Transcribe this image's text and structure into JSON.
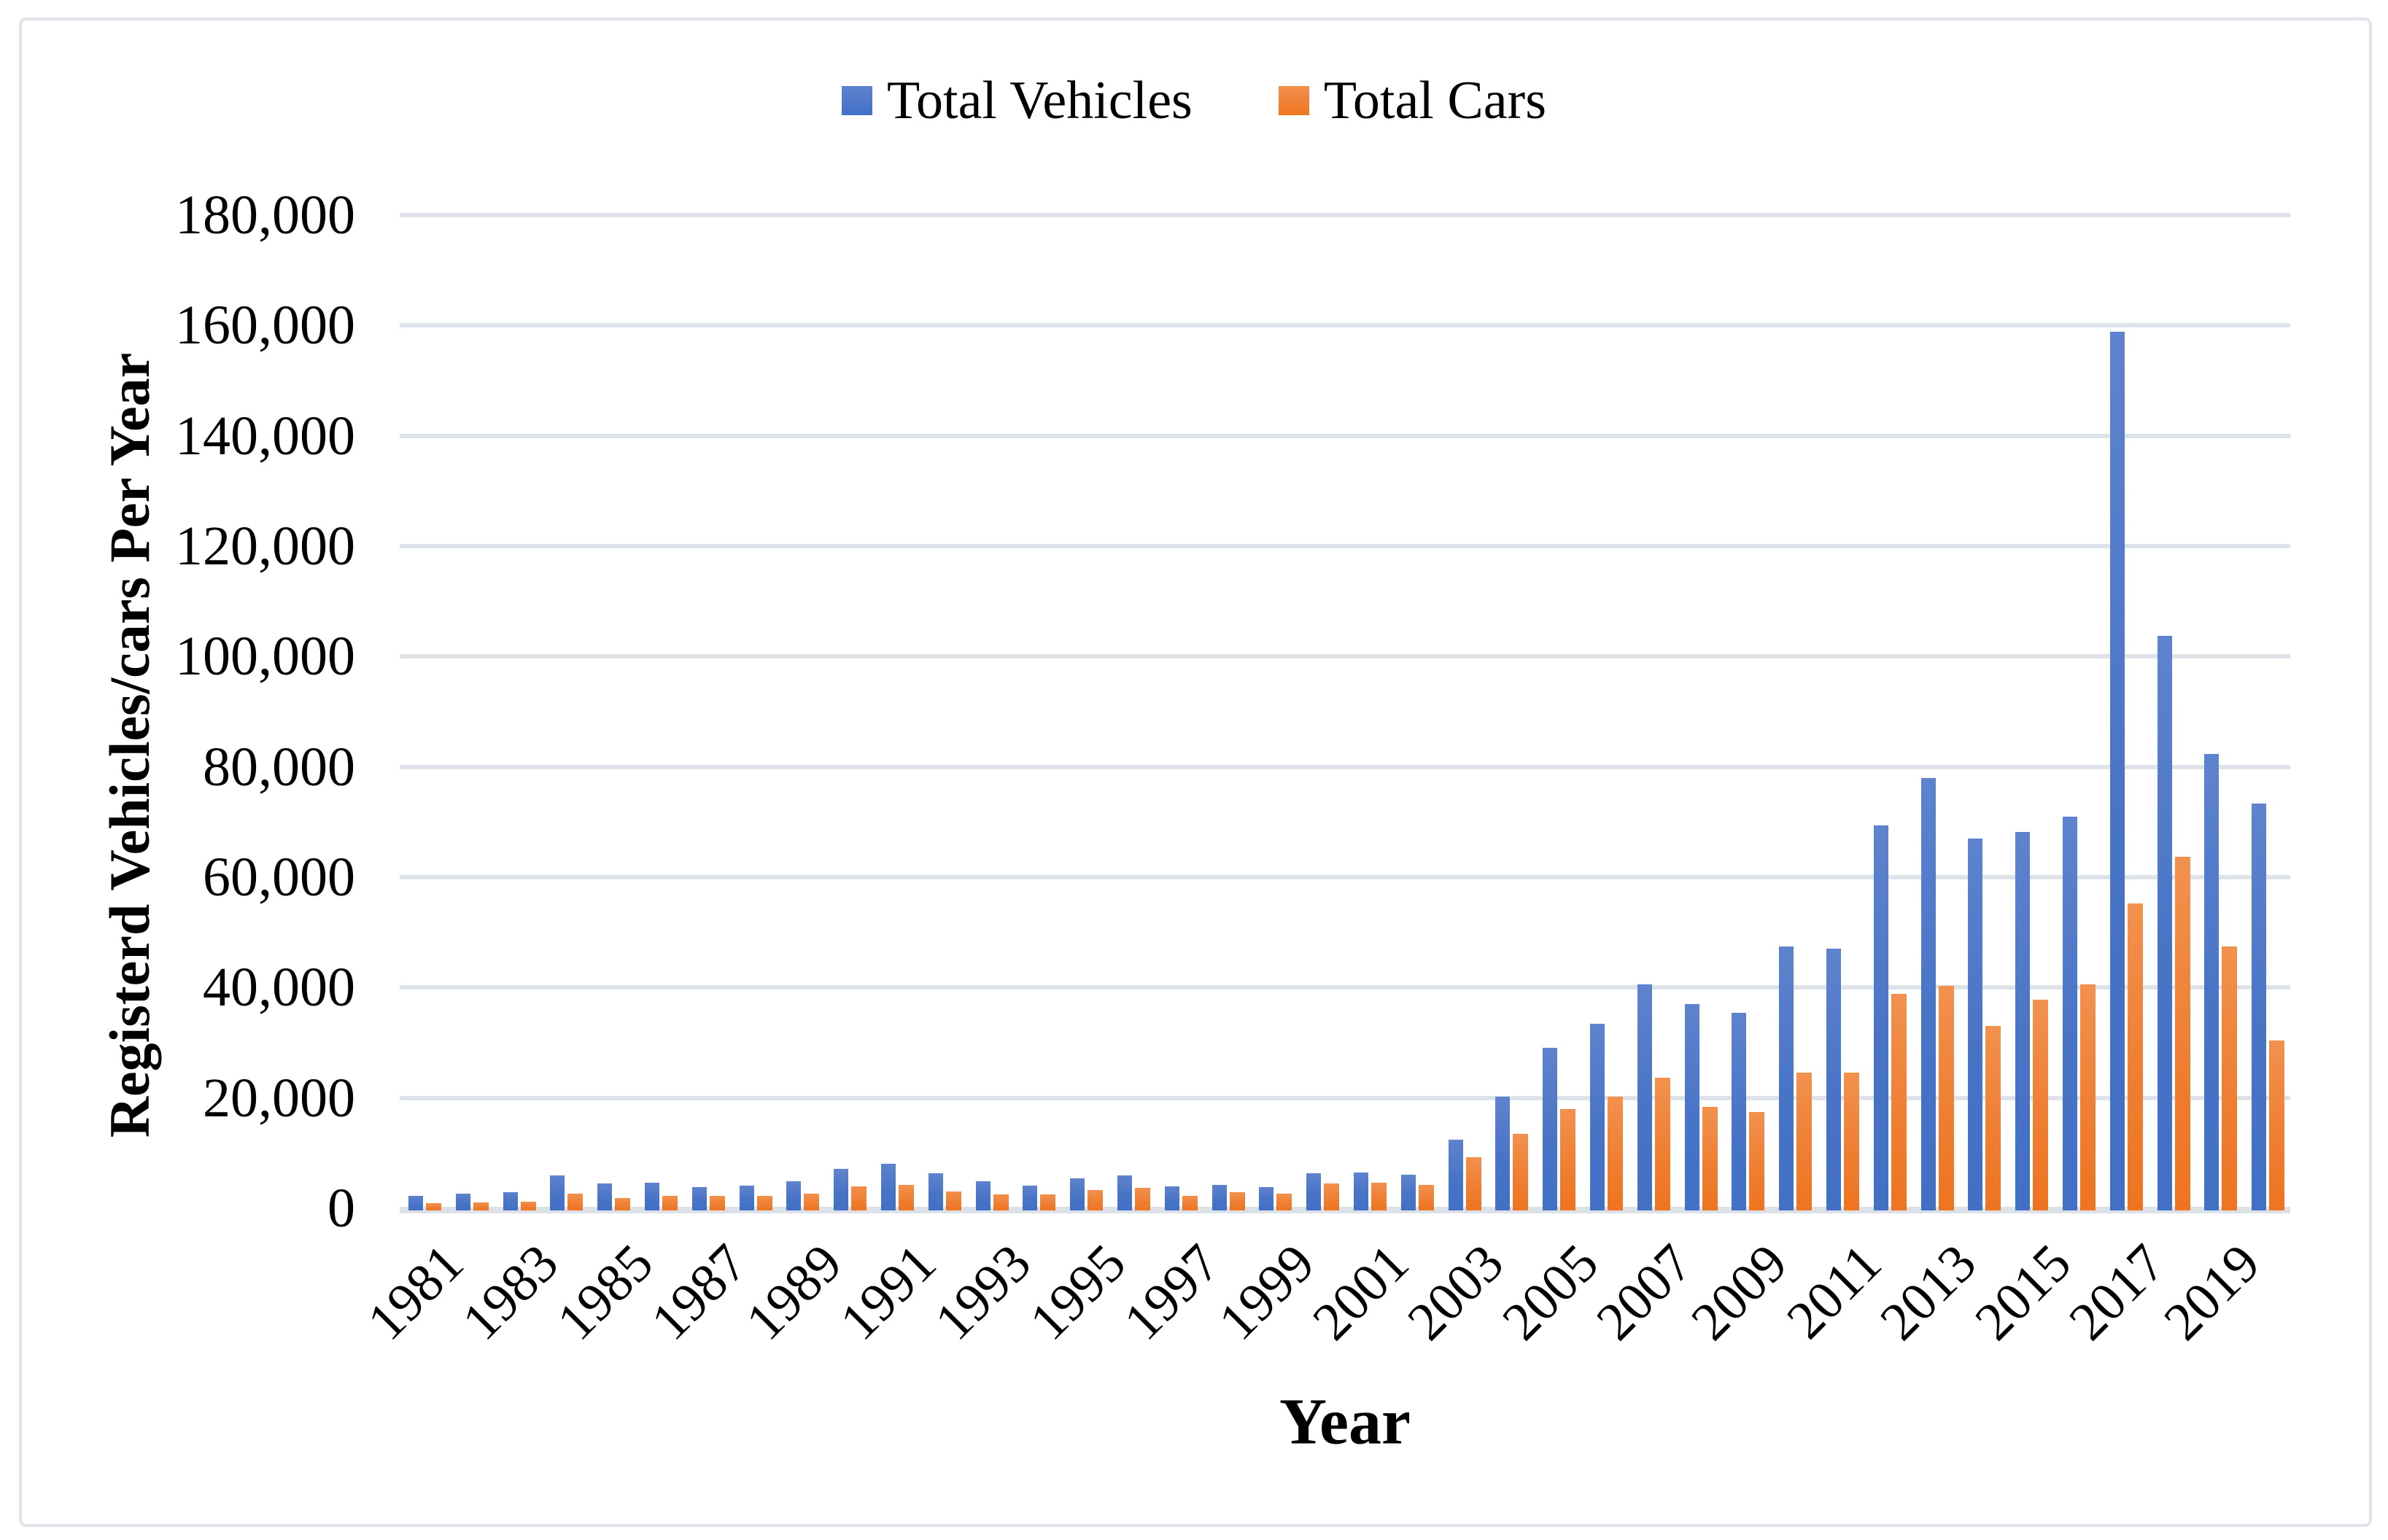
{
  "legend": {
    "items": [
      {
        "label": "Total Vehicles",
        "color_top": "#5e83ce",
        "color_bottom": "#4170c5",
        "color": "#4472c4"
      },
      {
        "label": "Total Cars",
        "color_top": "#f2914e",
        "color_bottom": "#ee7420",
        "color": "#ed7d31"
      }
    ]
  },
  "y_axis": {
    "title": "Registerd Vehicles/cars Per Year",
    "tick_labels": [
      "0",
      "20,000",
      "40,000",
      "60,000",
      "80,000",
      "100,000",
      "120,000",
      "140,000",
      "160,000",
      "180,000"
    ],
    "tick_values": [
      0,
      20000,
      40000,
      60000,
      80000,
      100000,
      120000,
      140000,
      160000,
      180000
    ]
  },
  "x_axis": {
    "title": "Year",
    "tick_labels": [
      "1981",
      "1983",
      "1985",
      "1987",
      "1989",
      "1991",
      "1993",
      "1995",
      "1997",
      "1999",
      "2001",
      "2003",
      "2005",
      "2007",
      "2009",
      "2011",
      "2013",
      "2015",
      "2017",
      "2019"
    ]
  },
  "chart_data": {
    "type": "bar",
    "title": "",
    "xlabel": "Year",
    "ylabel": "Registerd Vehicles/cars Per Year",
    "ylim": [
      0,
      180000
    ],
    "ystep": 20000,
    "grid": "horizontal",
    "legend_position": "top-center",
    "categories": [
      1981,
      1982,
      1983,
      1984,
      1985,
      1986,
      1987,
      1988,
      1989,
      1990,
      1991,
      1992,
      1993,
      1994,
      1995,
      1996,
      1997,
      1998,
      1999,
      2000,
      2001,
      2002,
      2003,
      2004,
      2005,
      2006,
      2007,
      2008,
      2009,
      2010,
      2011,
      2012,
      2013,
      2014,
      2015,
      2016,
      2017,
      2018,
      2019,
      2020
    ],
    "series": [
      {
        "name": "Total Vehicles",
        "color": "#4472c4",
        "values": [
          2300,
          2600,
          2900,
          6000,
          4500,
          4600,
          3800,
          4100,
          4900,
          7200,
          8100,
          6400,
          4900,
          4100,
          5400,
          5900,
          3900,
          4200,
          3800,
          6300,
          6500,
          6100,
          12400,
          20200,
          29100,
          33400,
          40600,
          37000,
          35400,
          47400,
          47000,
          69400,
          78000,
          67000,
          68200,
          71000,
          158800,
          103700,
          82300,
          73300
        ]
      },
      {
        "name": "Total Cars",
        "color": "#ed7d31",
        "values": [
          900,
          1100,
          1200,
          2600,
          1900,
          2200,
          2200,
          2300,
          2700,
          4000,
          4200,
          3000,
          2500,
          2500,
          3300,
          3700,
          2300,
          2900,
          2700,
          4500,
          4600,
          4200,
          9300,
          13500,
          18000,
          20200,
          23700,
          18400,
          17500,
          24600,
          24600,
          38900,
          40300,
          33100,
          37800,
          40600,
          55300,
          63700,
          47400,
          30400
        ]
      }
    ]
  }
}
